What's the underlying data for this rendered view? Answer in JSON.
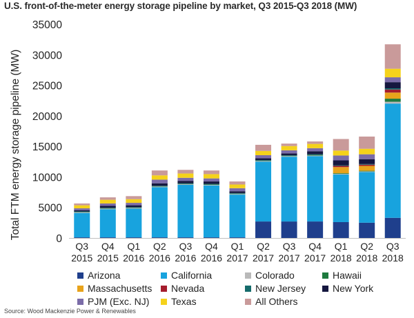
{
  "chart_data": {
    "type": "bar",
    "stacked": true,
    "title": "U.S. front-of-the-meter energy storage pipeline by market, Q3 2015-Q3 2018 (MW)",
    "xlabel": "",
    "ylabel": "Total FTM energy storage pipeline (MW)",
    "ylim": [
      0,
      35000
    ],
    "yticks": [
      "0",
      "5000",
      "10000",
      "15000",
      "20000",
      "25000",
      "30000",
      "35000"
    ],
    "categories": [
      [
        "Q3",
        "2015"
      ],
      [
        "Q4",
        "2015"
      ],
      [
        "Q1",
        "2016"
      ],
      [
        "Q2",
        "2016"
      ],
      [
        "Q3",
        "2016"
      ],
      [
        "Q4",
        "2016"
      ],
      [
        "Q1",
        "2017"
      ],
      [
        "Q2",
        "2017"
      ],
      [
        "Q3",
        "2017"
      ],
      [
        "Q4",
        "2017"
      ],
      [
        "Q1",
        "2018"
      ],
      [
        "Q2",
        "2018"
      ],
      [
        "Q3",
        "2018"
      ]
    ],
    "legend_position": "bottom",
    "series": [
      {
        "name": "Arizona",
        "color": "#1f3f8c",
        "values": [
          100,
          100,
          100,
          100,
          100,
          100,
          100,
          2700,
          2700,
          2700,
          2600,
          2500,
          3300
        ]
      },
      {
        "name": "California",
        "color": "#18a3de",
        "values": [
          4000,
          4600,
          4700,
          8200,
          8600,
          8500,
          7000,
          9800,
          10600,
          10700,
          7800,
          8300,
          18700
        ]
      },
      {
        "name": "Colorado",
        "color": "#b9b9b9",
        "values": [
          100,
          100,
          100,
          100,
          100,
          100,
          100,
          100,
          100,
          100,
          100,
          100,
          300
        ]
      },
      {
        "name": "Hawaii",
        "color": "#1e7a3e",
        "values": [
          50,
          50,
          50,
          50,
          50,
          50,
          50,
          50,
          50,
          100,
          100,
          100,
          500
        ]
      },
      {
        "name": "Massachusetts",
        "color": "#e8a31b",
        "values": [
          0,
          0,
          0,
          0,
          0,
          0,
          0,
          0,
          0,
          0,
          1000,
          800,
          1000
        ]
      },
      {
        "name": "Nevada",
        "color": "#a51d2d",
        "values": [
          0,
          0,
          0,
          0,
          0,
          0,
          0,
          0,
          0,
          0,
          200,
          200,
          500
        ]
      },
      {
        "name": "New Jersey",
        "color": "#156b6b",
        "values": [
          100,
          100,
          100,
          100,
          100,
          100,
          100,
          100,
          100,
          100,
          100,
          100,
          200
        ]
      },
      {
        "name": "New York",
        "color": "#15173f",
        "values": [
          200,
          300,
          300,
          400,
          400,
          400,
          300,
          300,
          300,
          500,
          800,
          800,
          1000
        ]
      },
      {
        "name": "PJM (Exc. NJ)",
        "color": "#7b6ca8",
        "values": [
          300,
          400,
          400,
          600,
          500,
          500,
          500,
          500,
          500,
          500,
          800,
          800,
          800
        ]
      },
      {
        "name": "Texas",
        "color": "#f5d21b",
        "values": [
          500,
          600,
          600,
          700,
          700,
          700,
          600,
          700,
          700,
          700,
          800,
          900,
          1400
        ]
      },
      {
        "name": "All Others",
        "color": "#c99a9a",
        "values": [
          300,
          400,
          500,
          800,
          600,
          600,
          500,
          1000,
          400,
          400,
          1900,
          2000,
          4000
        ]
      }
    ]
  },
  "source": "Source: Wood Mackenzie Power & Renewables"
}
